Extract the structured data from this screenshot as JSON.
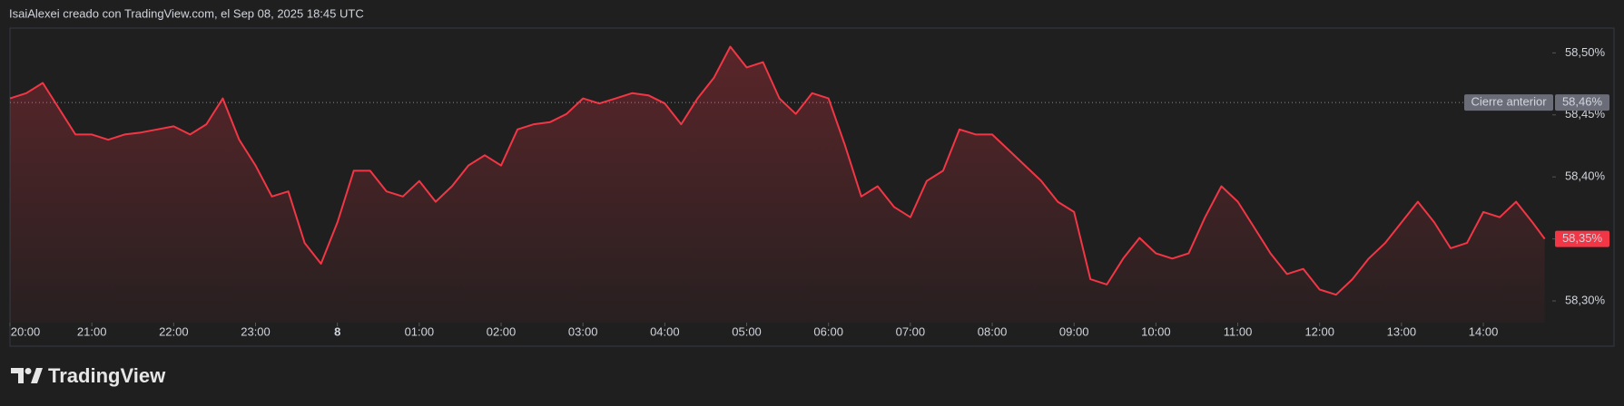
{
  "header": "IsaiAlexei creado con TradingView.com, el Sep 08, 2025 18:45 UTC",
  "brand": "TradingView",
  "chart_data": {
    "type": "line",
    "x": [
      0,
      0.2,
      0.4,
      0.6,
      0.8,
      1,
      1.2,
      1.4,
      1.6,
      1.8,
      2,
      2.2,
      2.4,
      2.6,
      2.8,
      3,
      3.2,
      3.4,
      3.6,
      3.8,
      4,
      4.2,
      4.4,
      4.6,
      4.8,
      5,
      5.2,
      5.4,
      5.6,
      5.8,
      6,
      6.2,
      6.4,
      6.6,
      6.8,
      7,
      7.2,
      7.4,
      7.6,
      7.8,
      8,
      8.2,
      8.4,
      8.6,
      8.8,
      9,
      9.2,
      9.4,
      9.6,
      9.8,
      10,
      10.2,
      10.4,
      10.6,
      10.8,
      11,
      11.2,
      11.4,
      11.6,
      11.8,
      12,
      12.2,
      12.4,
      12.6,
      12.8,
      13,
      13.2,
      13.4,
      13.6,
      13.8,
      14,
      14.2,
      14.4,
      14.6,
      14.8,
      15,
      15.2,
      15.4,
      15.6,
      15.8,
      16,
      16.2,
      16.4,
      16.6,
      16.8,
      17,
      17.2,
      17.4,
      17.6,
      17.8,
      18,
      18.2,
      18.4,
      18.6,
      18.75
    ],
    "series": [
      {
        "color": "#f23645",
        "values": [
          58.4633,
          58.4675,
          58.4758,
          58.455,
          58.4342,
          58.4342,
          58.43,
          58.4342,
          58.4358,
          58.4383,
          58.4408,
          58.4342,
          58.4425,
          58.4633,
          58.43,
          58.4092,
          58.3842,
          58.3883,
          58.3467,
          58.33,
          58.3633,
          58.405,
          58.405,
          58.3883,
          58.3842,
          58.3967,
          58.38,
          58.3925,
          58.4092,
          58.4175,
          58.4092,
          58.4383,
          58.4425,
          58.4442,
          58.4508,
          58.4633,
          58.4592,
          58.4633,
          58.4675,
          58.4658,
          58.4592,
          58.4425,
          58.4633,
          58.48,
          58.505,
          58.4883,
          58.4925,
          58.4633,
          58.4508,
          58.4675,
          58.4633,
          58.4258,
          58.3842,
          58.3925,
          58.3758,
          58.3675,
          58.3967,
          58.405,
          58.4383,
          58.4342,
          58.4342,
          58.4217,
          58.4092,
          58.3967,
          58.38,
          58.3717,
          58.3175,
          58.3133,
          58.3342,
          58.3508,
          58.3383,
          58.3342,
          58.3383,
          58.3675,
          58.3925,
          58.38,
          58.3592,
          58.3383,
          58.3217,
          58.3258,
          58.3092,
          58.305,
          58.3175,
          58.3342,
          58.3467,
          58.3633,
          58.38,
          58.3633,
          58.3425,
          58.3467,
          58.3717,
          58.3675,
          58.38,
          58.3633,
          58.35
        ]
      }
    ],
    "last_value_label": "58,35%",
    "previous_close": {
      "label": "Cierre anterior",
      "value": 58.46,
      "value_label": "58,46%"
    },
    "xlim": [
      0,
      18.82
    ],
    "xticks": [
      {
        "value": 0,
        "label": "20:00"
      },
      {
        "value": 1,
        "label": "21:00"
      },
      {
        "value": 2,
        "label": "22:00"
      },
      {
        "value": 3,
        "label": "23:00"
      },
      {
        "value": 4,
        "label": "8"
      },
      {
        "value": 5,
        "label": "01:00"
      },
      {
        "value": 6,
        "label": "02:00"
      },
      {
        "value": 7,
        "label": "03:00"
      },
      {
        "value": 8,
        "label": "04:00"
      },
      {
        "value": 9,
        "label": "05:00"
      },
      {
        "value": 10,
        "label": "06:00"
      },
      {
        "value": 11,
        "label": "07:00"
      },
      {
        "value": 12,
        "label": "08:00"
      },
      {
        "value": 13,
        "label": "09:00"
      },
      {
        "value": 14,
        "label": "10:00"
      },
      {
        "value": 15,
        "label": "11:00"
      },
      {
        "value": 16,
        "label": "12:00"
      },
      {
        "value": 17,
        "label": "13:00"
      },
      {
        "value": 18,
        "label": "14:00"
      }
    ],
    "ylim": [
      58.2825,
      58.52
    ],
    "yticks": [
      {
        "value": 58.3,
        "label": "58,30%"
      },
      {
        "value": 58.35,
        "label": "58,35%"
      },
      {
        "value": 58.4,
        "label": "58,40%"
      },
      {
        "value": 58.45,
        "label": "58,45%"
      },
      {
        "value": 58.5,
        "label": "58,50%"
      }
    ]
  }
}
